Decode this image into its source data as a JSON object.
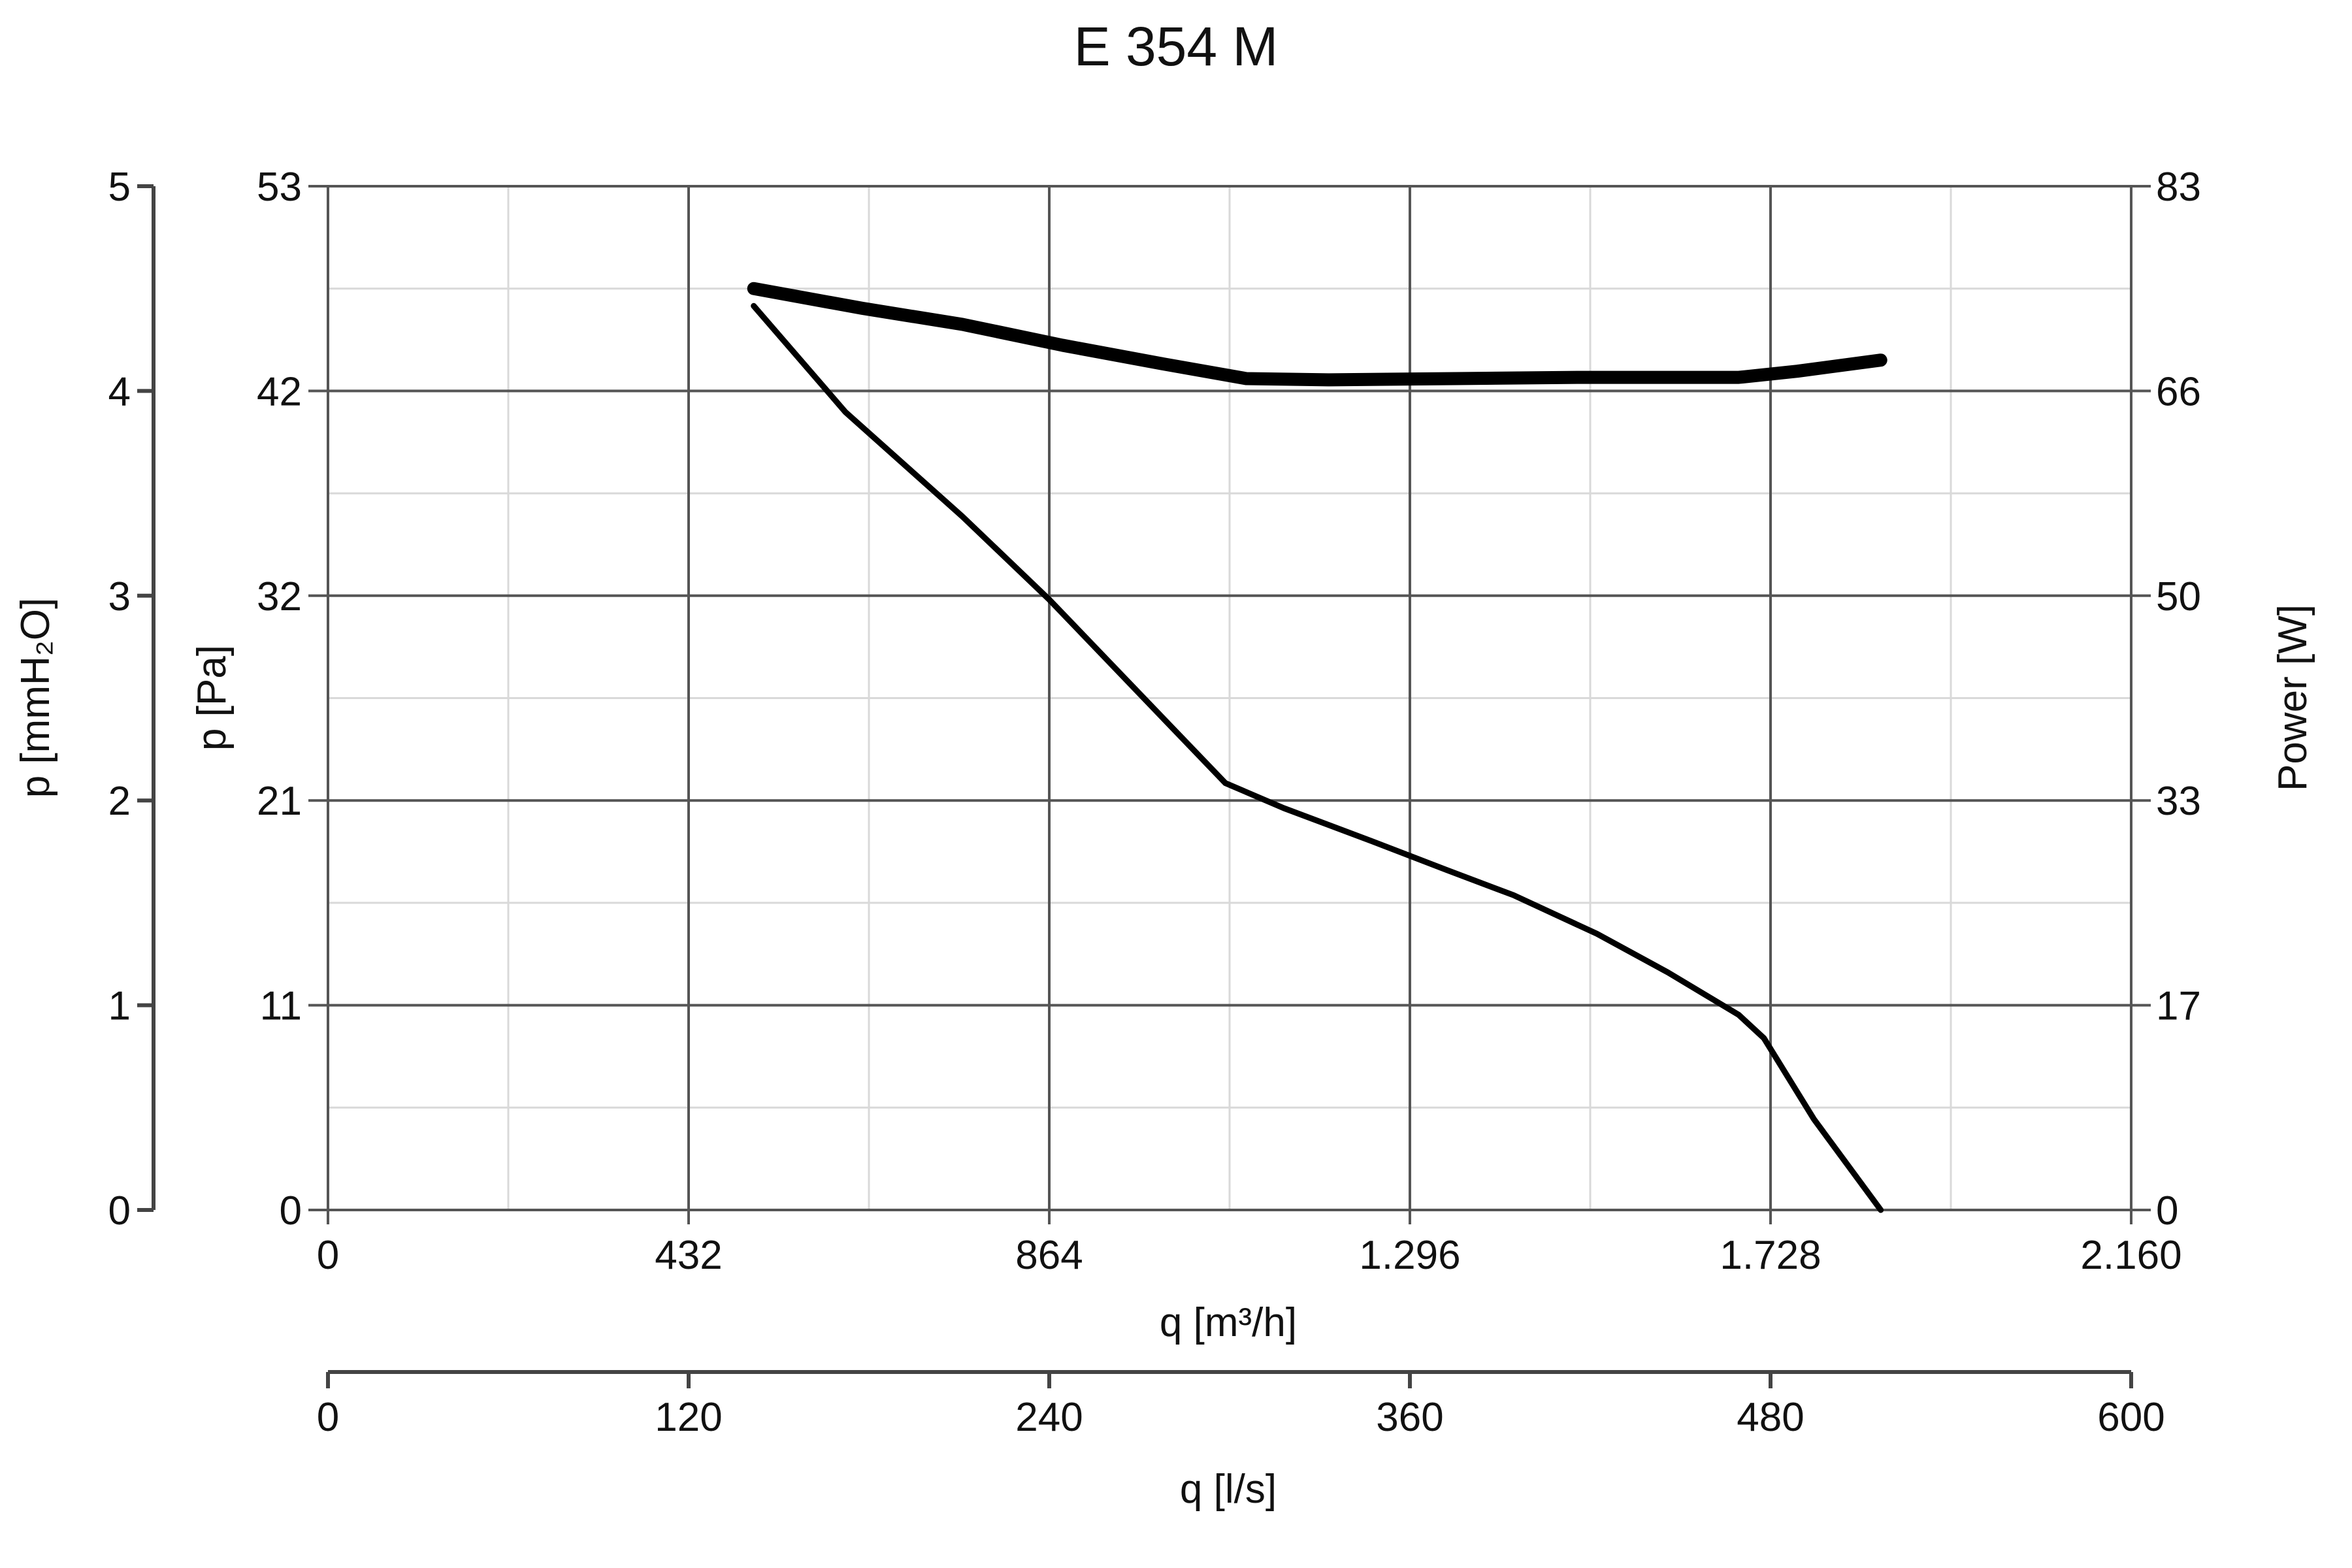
{
  "chart_data": {
    "type": "line",
    "title": "E 354 M",
    "x_axes": [
      {
        "label": "q [m³/h]",
        "ticks": [
          0,
          432,
          864,
          1296,
          1728,
          2160
        ],
        "tick_labels": [
          "0",
          "432",
          "864",
          "1.296",
          "1.728",
          "2.160"
        ],
        "range": [
          0,
          2160
        ]
      },
      {
        "label": "q [l/s]",
        "ticks": [
          0,
          120,
          240,
          360,
          480,
          600
        ],
        "tick_labels": [
          "0",
          "120",
          "240",
          "360",
          "480",
          "600"
        ],
        "range": [
          0,
          600
        ]
      }
    ],
    "y_axes": [
      {
        "label": "p [mmH₂O]",
        "tick_labels": [
          "0",
          "1",
          "2",
          "3",
          "4",
          "5"
        ],
        "range": [
          0,
          5
        ]
      },
      {
        "label": "p [Pa]",
        "tick_labels": [
          "0",
          "11",
          "21",
          "32",
          "42",
          "53"
        ],
        "range": [
          0,
          53
        ]
      },
      {
        "label": "Power [W]",
        "tick_labels": [
          "0",
          "17",
          "33",
          "50",
          "66",
          "83"
        ],
        "range": [
          0,
          83
        ]
      }
    ],
    "grid": true,
    "series": [
      {
        "axis": "pressure",
        "units": "Pa",
        "points": [
          [
            510,
            46.8
          ],
          [
            620,
            41.3
          ],
          [
            760,
            35.9
          ],
          [
            864,
            31.6
          ],
          [
            975,
            26.6
          ],
          [
            1075,
            22.1
          ],
          [
            1145,
            20.8
          ],
          [
            1250,
            19.1
          ],
          [
            1340,
            17.6
          ],
          [
            1420,
            16.3
          ],
          [
            1520,
            14.3
          ],
          [
            1605,
            12.3
          ],
          [
            1690,
            10.1
          ],
          [
            1720,
            8.9
          ],
          [
            1780,
            4.7
          ],
          [
            1860,
            0
          ]
        ]
      },
      {
        "axis": "power",
        "units": "W",
        "points": [
          [
            510,
            74.7
          ],
          [
            640,
            73.1
          ],
          [
            760,
            71.8
          ],
          [
            880,
            70.1
          ],
          [
            1000,
            68.6
          ],
          [
            1100,
            67.4
          ],
          [
            1200,
            67.3
          ],
          [
            1350,
            67.4
          ],
          [
            1500,
            67.5
          ],
          [
            1690,
            67.5
          ],
          [
            1760,
            68.0
          ],
          [
            1860,
            68.9
          ]
        ]
      }
    ]
  }
}
